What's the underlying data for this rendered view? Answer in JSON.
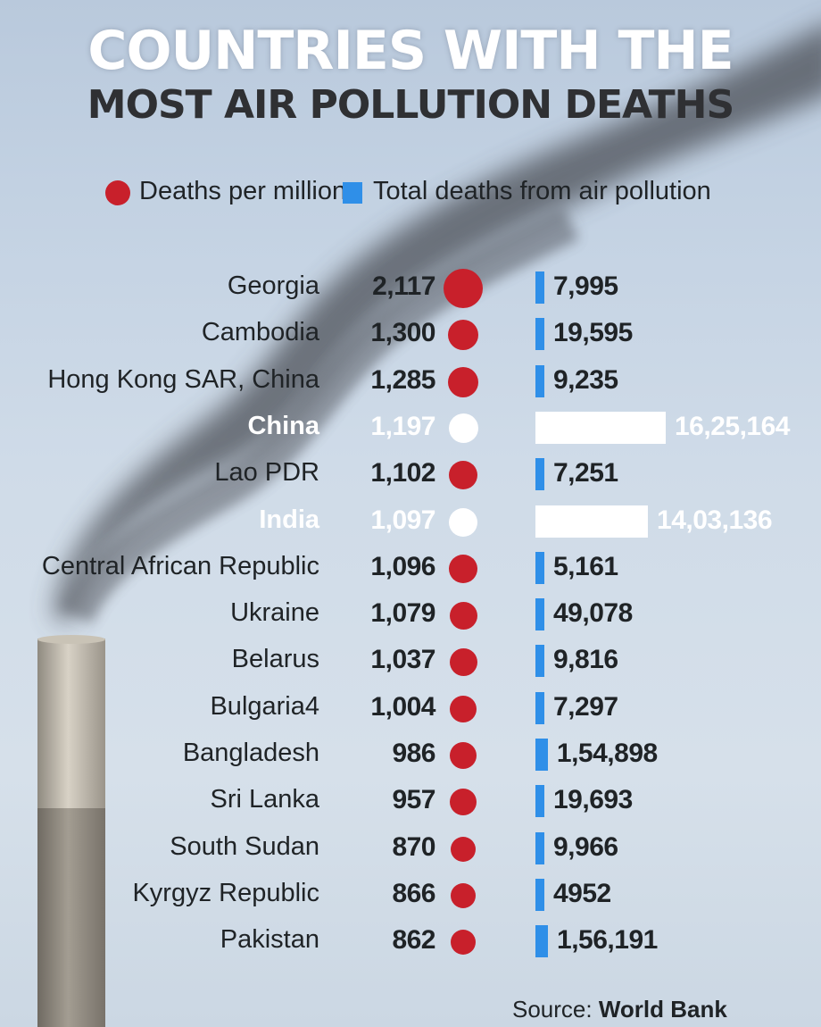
{
  "colors": {
    "rate_dot": "#c8202b",
    "total_bar": "#2f8fe8",
    "highlight": "#ffffff",
    "title_primary": "#ffffff",
    "title_secondary": "#2f3033"
  },
  "icons": {
    "background": "smokestack-photo"
  },
  "source_label": "Source:",
  "source_name": "World Bank",
  "chart_data": {
    "type": "bar",
    "title": "COUNTRIES WITH THE",
    "subtitle": "MOST AIR POLLUTION DEATHS",
    "legend": [
      {
        "label": "Deaths per million",
        "marker": "circle",
        "color": "#c8202b"
      },
      {
        "label": "Total deaths from air pollution",
        "marker": "square",
        "color": "#2f8fe8"
      }
    ],
    "highlighted": [
      "China",
      "India"
    ],
    "rows": [
      {
        "country": "Georgia",
        "rate": 2117,
        "rate_label": "2,117",
        "total": 7995,
        "total_label": "7,995"
      },
      {
        "country": "Cambodia",
        "rate": 1300,
        "rate_label": "1,300",
        "total": 19595,
        "total_label": "19,595"
      },
      {
        "country": "Hong Kong SAR, China",
        "rate": 1285,
        "rate_label": "1,285",
        "total": 9235,
        "total_label": "9,235"
      },
      {
        "country": "China",
        "rate": 1197,
        "rate_label": "1,197",
        "total": 1625164,
        "total_label": "16,25,164"
      },
      {
        "country": "Lao PDR",
        "rate": 1102,
        "rate_label": "1,102",
        "total": 7251,
        "total_label": "7,251"
      },
      {
        "country": "India",
        "rate": 1097,
        "rate_label": "1,097",
        "total": 1403136,
        "total_label": "14,03,136"
      },
      {
        "country": "Central African Republic",
        "rate": 1096,
        "rate_label": "1,096",
        "total": 5161,
        "total_label": "5,161"
      },
      {
        "country": "Ukraine",
        "rate": 1079,
        "rate_label": "1,079",
        "total": 49078,
        "total_label": "49,078"
      },
      {
        "country": "Belarus",
        "rate": 1037,
        "rate_label": "1,037",
        "total": 9816,
        "total_label": "9,816"
      },
      {
        "country": "Bulgaria4",
        "rate": 1004,
        "rate_label": "1,004",
        "total": 7297,
        "total_label": "7,297"
      },
      {
        "country": "Bangladesh",
        "rate": 986,
        "rate_label": "986",
        "total": 154898,
        "total_label": "1,54,898"
      },
      {
        "country": "Sri Lanka",
        "rate": 957,
        "rate_label": "957",
        "total": 19693,
        "total_label": "19,693"
      },
      {
        "country": "South Sudan",
        "rate": 870,
        "rate_label": "870",
        "total": 9966,
        "total_label": "9,966"
      },
      {
        "country": "Kyrgyz Republic",
        "rate": 866,
        "rate_label": "866",
        "total": 4952,
        "total_label": "4952"
      },
      {
        "country": "Pakistan",
        "rate": 862,
        "rate_label": "862",
        "total": 156191,
        "total_label": "1,56,191"
      }
    ]
  }
}
